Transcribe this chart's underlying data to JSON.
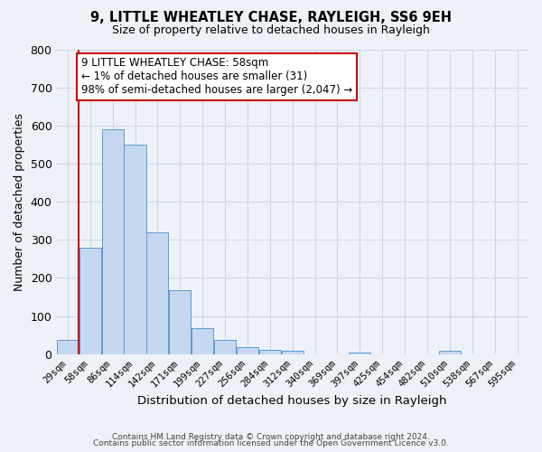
{
  "title": "9, LITTLE WHEATLEY CHASE, RAYLEIGH, SS6 9EH",
  "subtitle": "Size of property relative to detached houses in Rayleigh",
  "xlabel": "Distribution of detached houses by size in Rayleigh",
  "ylabel": "Number of detached properties",
  "bin_labels": [
    "29sqm",
    "58sqm",
    "86sqm",
    "114sqm",
    "142sqm",
    "171sqm",
    "199sqm",
    "227sqm",
    "256sqm",
    "284sqm",
    "312sqm",
    "340sqm",
    "369sqm",
    "397sqm",
    "425sqm",
    "454sqm",
    "482sqm",
    "510sqm",
    "538sqm",
    "567sqm",
    "595sqm"
  ],
  "bar_values": [
    37,
    280,
    590,
    550,
    320,
    168,
    68,
    37,
    18,
    10,
    8,
    0,
    0,
    5,
    0,
    0,
    0,
    8,
    0,
    0,
    0
  ],
  "bar_color": "#c5d8f0",
  "bar_edge_color": "#5b9bd5",
  "ylim": [
    0,
    800
  ],
  "yticks": [
    0,
    100,
    200,
    300,
    400,
    500,
    600,
    700,
    800
  ],
  "grid_color": "#cdd6e8",
  "background_color": "#eef2f8",
  "annotation_text": "9 LITTLE WHEATLEY CHASE: 58sqm\n← 1% of detached houses are smaller (31)\n98% of semi-detached houses are larger (2,047) →",
  "annotation_box_color": "white",
  "annotation_box_edge": "#cc0000",
  "property_bin_index": 1,
  "vline_color": "#cc0000",
  "footer_line1": "Contains HM Land Registry data © Crown copyright and database right 2024.",
  "footer_line2": "Contains public sector information licensed under the Open Government Licence v3.0."
}
